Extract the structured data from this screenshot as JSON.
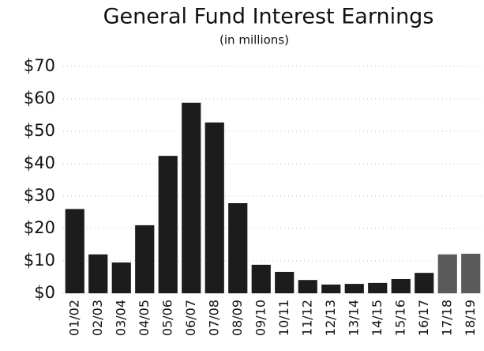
{
  "chart_data": {
    "type": "bar",
    "title": "General Fund Interest Earnings",
    "subtitle": "(in millions)",
    "categories": [
      "01/02",
      "02/03",
      "03/04",
      "04/05",
      "05/06",
      "06/07",
      "07/08",
      "08/09",
      "09/10",
      "10/11",
      "11/12",
      "12/13",
      "13/14",
      "14/15",
      "15/16",
      "16/17",
      "17/18",
      "18/19"
    ],
    "values": [
      26,
      12,
      9.5,
      21,
      42.4,
      58.8,
      52.7,
      27.8,
      8.8,
      6.6,
      4.1,
      2.7,
      2.9,
      3.2,
      4.4,
      6.3,
      12,
      12.2
    ],
    "colors": [
      "#1c1c1c",
      "#1c1c1c",
      "#1c1c1c",
      "#1c1c1c",
      "#1c1c1c",
      "#1c1c1c",
      "#1c1c1c",
      "#1c1c1c",
      "#1c1c1c",
      "#1c1c1c",
      "#1c1c1c",
      "#1c1c1c",
      "#1c1c1c",
      "#1c1c1c",
      "#1c1c1c",
      "#1c1c1c",
      "#5a5a5a",
      "#5a5a5a"
    ],
    "ylim": [
      0,
      70
    ],
    "yticks": [
      {
        "value": 0,
        "label": "$0"
      },
      {
        "value": 10,
        "label": "$10"
      },
      {
        "value": 20,
        "label": "$20"
      },
      {
        "value": 30,
        "label": "$30"
      },
      {
        "value": 40,
        "label": "$40"
      },
      {
        "value": 50,
        "label": "$50"
      },
      {
        "value": 60,
        "label": "$60"
      },
      {
        "value": 70,
        "label": "$70"
      }
    ],
    "grid": true
  }
}
